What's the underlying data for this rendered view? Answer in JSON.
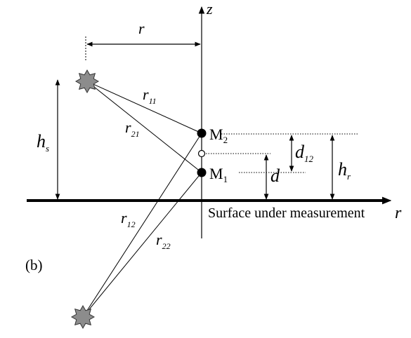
{
  "figure": {
    "panel_label": "(b)",
    "axes": {
      "z_label": "z",
      "r_label": "r"
    },
    "surface_label": "Surface under measurement",
    "dimensions": {
      "r": "r",
      "hs_main": "h",
      "hs_sub": "s",
      "hr_main": "h",
      "hr_sub": "r",
      "d": "d",
      "d12_main": "d",
      "d12_sub": "12"
    },
    "points": {
      "m1_main": "M",
      "m1_sub": "1",
      "m2_main": "M",
      "m2_sub": "2"
    },
    "rays": {
      "r11": "r",
      "r11_sub": "11",
      "r21": "r",
      "r21_sub": "21",
      "r12": "r",
      "r12_sub": "12",
      "r22": "r",
      "r22_sub": "22"
    },
    "colors": {
      "source_fill": "#8c8c8c",
      "line": "#000000"
    }
  }
}
